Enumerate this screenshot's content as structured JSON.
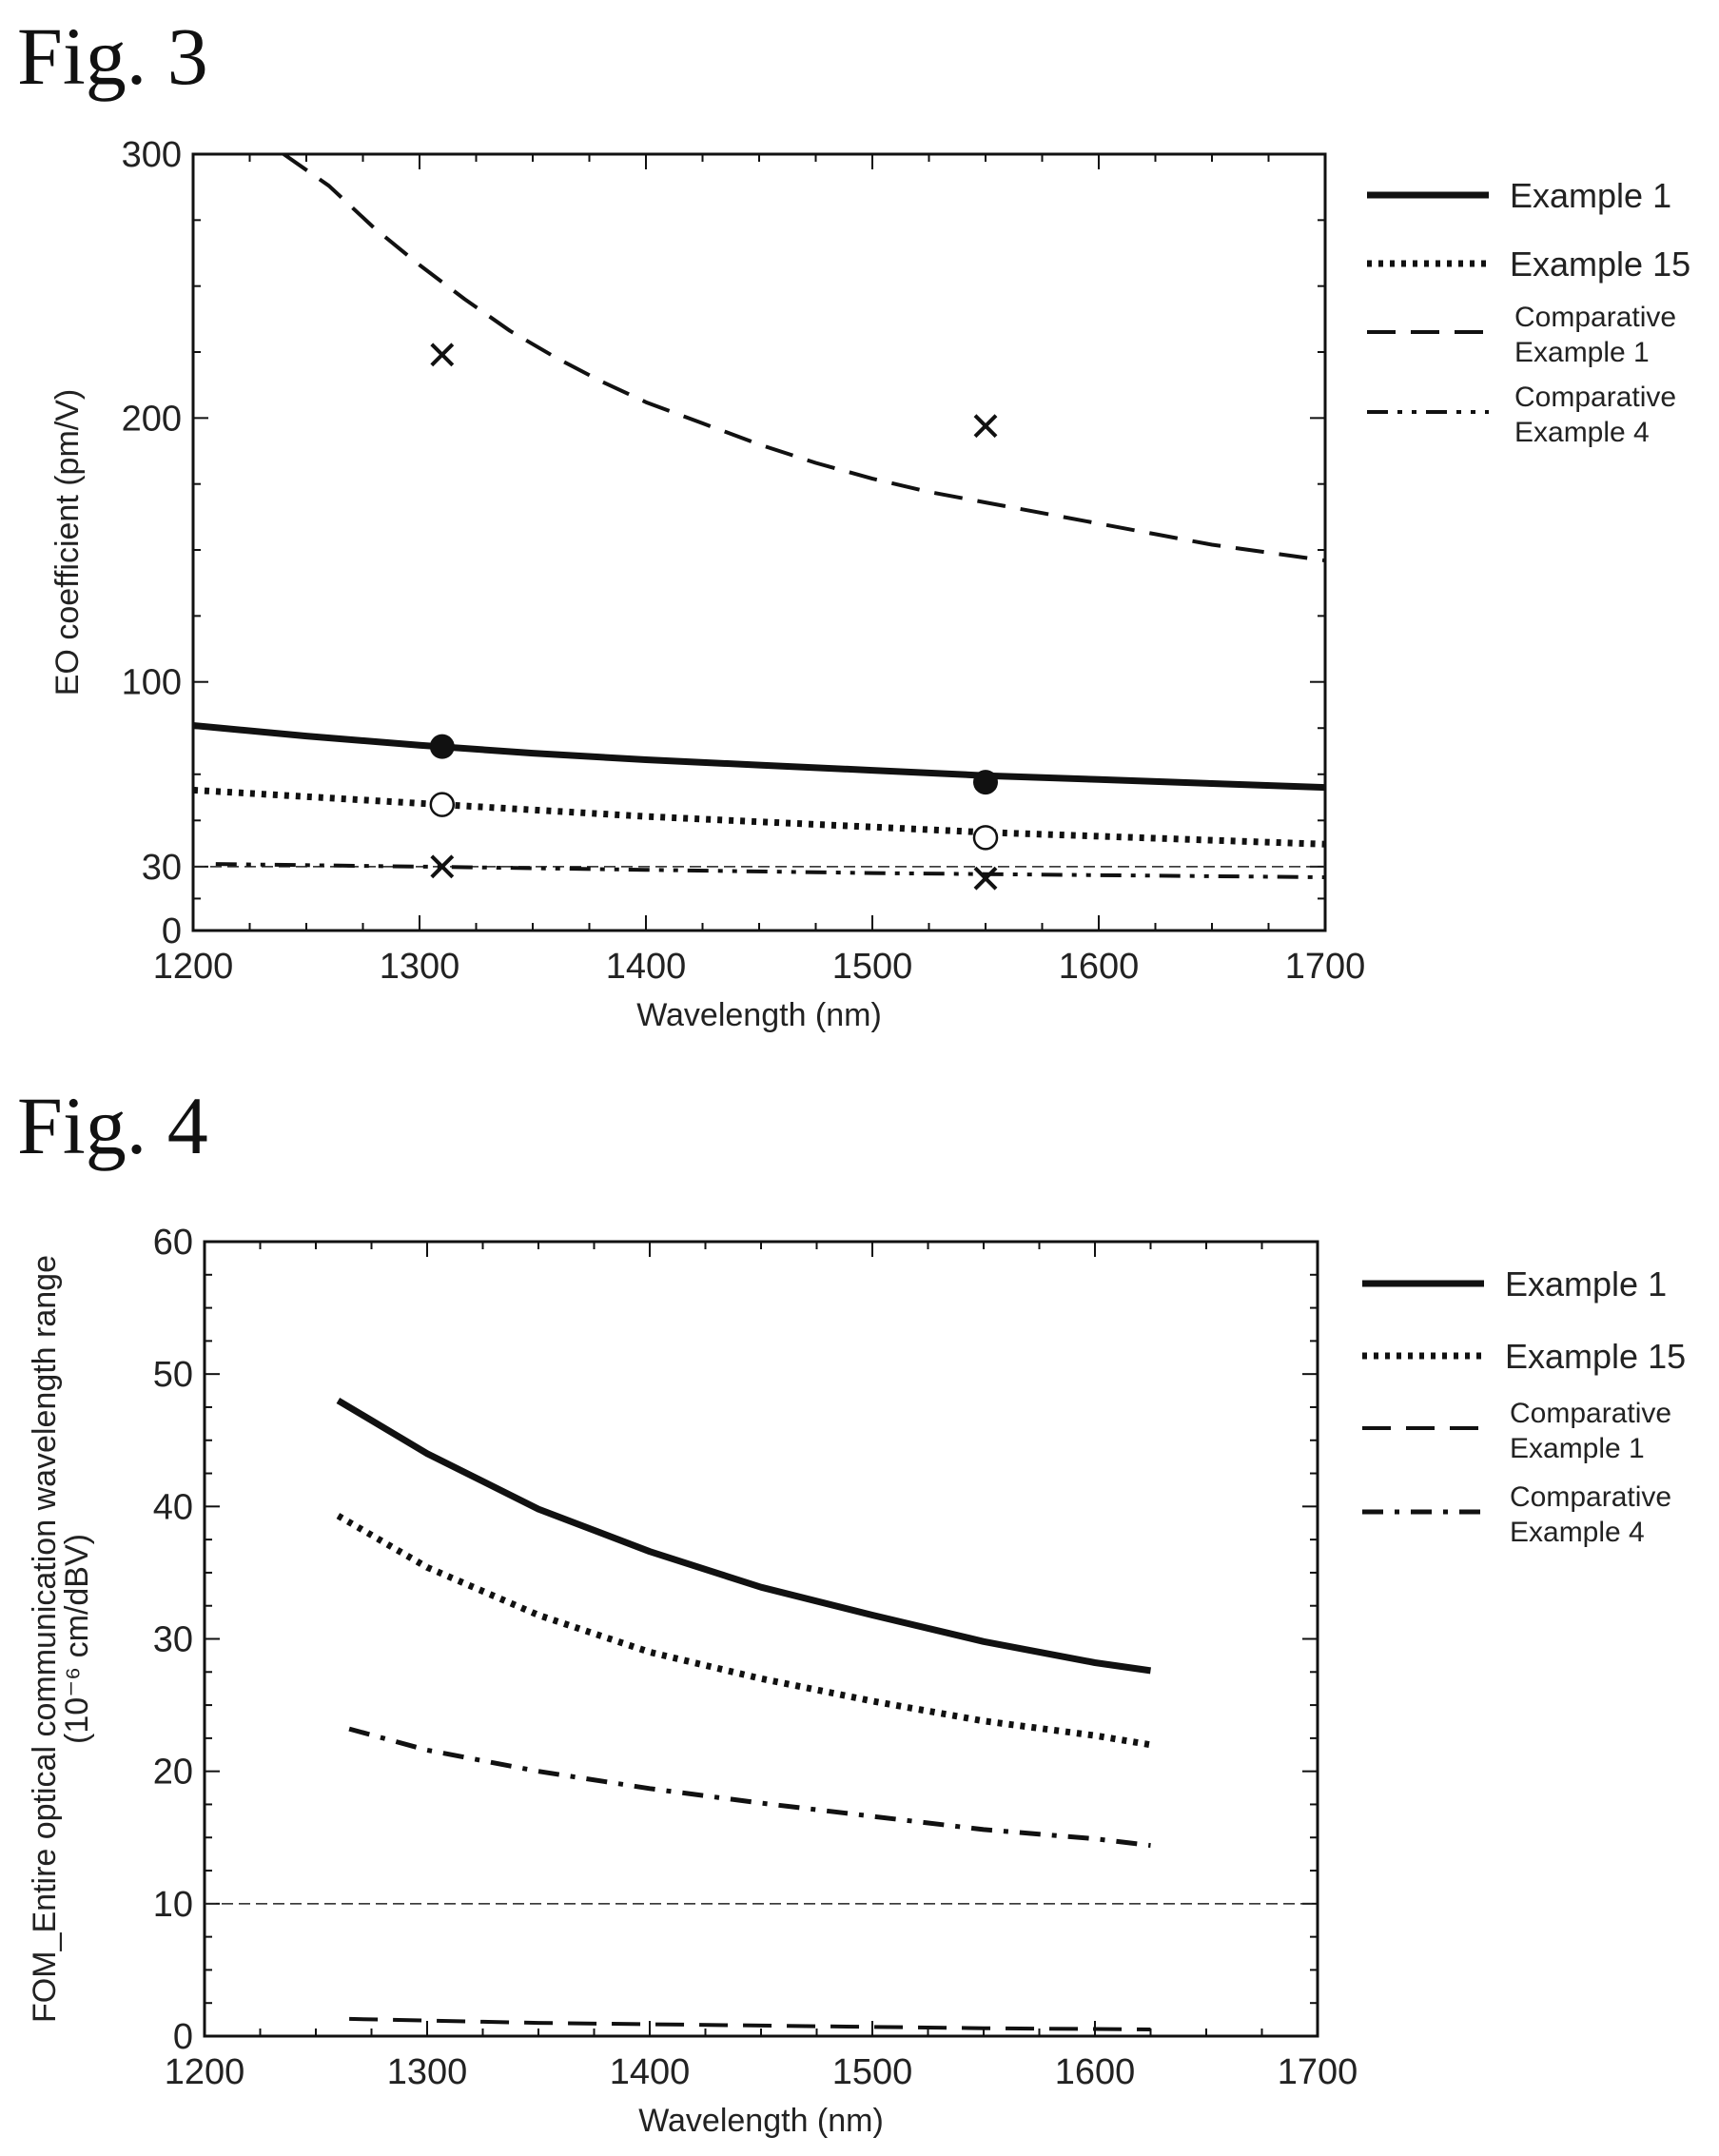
{
  "figures": [
    {
      "label": "Fig. 3"
    },
    {
      "label": "Fig. 4"
    }
  ],
  "chart_data": [
    {
      "type": "line",
      "xlabel": "Wavelength (nm)",
      "ylabel": "EO coefficient (pm/V)",
      "xlim": [
        1200,
        1700
      ],
      "ylim": [
        0,
        300
      ],
      "xticks": [
        1200,
        1300,
        1400,
        1500,
        1600,
        1700
      ],
      "yticks": [
        0,
        30,
        100,
        200,
        300
      ],
      "grid": false,
      "legend_position": "outside-right",
      "reference_lines": [
        {
          "y": 30,
          "style": "thin-dashed"
        }
      ],
      "series": [
        {
          "name": "Example 1",
          "style": "solid",
          "x": [
            1200,
            1250,
            1300,
            1350,
            1400,
            1450,
            1500,
            1550,
            1600,
            1650,
            1700
          ],
          "y": [
            83.5,
            79.5,
            76,
            73,
            70.5,
            68.5,
            66.5,
            64.5,
            63,
            61.5,
            60
          ],
          "markers": {
            "shape": "filled-circle",
            "x": [
              1310,
              1550
            ],
            "y": [
              75.5,
              62
            ]
          }
        },
        {
          "name": "Example 15",
          "style": "dotted",
          "x": [
            1200,
            1250,
            1300,
            1350,
            1400,
            1450,
            1500,
            1550,
            1600,
            1650,
            1700
          ],
          "y": [
            59,
            56.5,
            54,
            51.5,
            49,
            47,
            45,
            43,
            41.5,
            40,
            38.5
          ],
          "markers": {
            "shape": "open-circle",
            "x": [
              1310,
              1550
            ],
            "y": [
              53.5,
              41
            ]
          }
        },
        {
          "name": "Comparative\nExample 1",
          "style": "dashed",
          "x": [
            1240,
            1260,
            1280,
            1300,
            1320,
            1340,
            1360,
            1380,
            1400,
            1425,
            1450,
            1475,
            1500,
            1525,
            1550,
            1575,
            1600,
            1625,
            1650,
            1675,
            1700
          ],
          "y": [
            300,
            288,
            272,
            258,
            245,
            233,
            223,
            214,
            206,
            198,
            190,
            183,
            177,
            172,
            168,
            164,
            160,
            156,
            152,
            149,
            146
          ],
          "markers": {
            "shape": "x",
            "x": [
              1310,
              1550
            ],
            "y": [
              224,
              197
            ]
          }
        },
        {
          "name": "Comparative\nExample 4",
          "style": "dash-dot-dot",
          "x": [
            1210,
            1300,
            1400,
            1500,
            1550,
            1600,
            1700
          ],
          "y": [
            31,
            30,
            28.5,
            27,
            26.5,
            26,
            25
          ],
          "markers": {
            "shape": "x",
            "x": [
              1310,
              1550
            ],
            "y": [
              30,
              24.5
            ]
          }
        }
      ]
    },
    {
      "type": "line",
      "xlabel": "Wavelength (nm)",
      "ylabel": "FOM_Entire optical communication wavelength range",
      "ylabel_unit": "(10⁻⁶ cm/dBV)",
      "xlim": [
        1200,
        1700
      ],
      "ylim": [
        0,
        60
      ],
      "xticks": [
        1200,
        1300,
        1400,
        1500,
        1600,
        1700
      ],
      "yticks": [
        0,
        10,
        20,
        30,
        40,
        50,
        60
      ],
      "grid": false,
      "legend_position": "outside-right",
      "reference_lines": [
        {
          "y": 10,
          "style": "thin-dashed"
        }
      ],
      "series": [
        {
          "name": "Example 1",
          "style": "solid",
          "x": [
            1260,
            1300,
            1350,
            1400,
            1450,
            1500,
            1550,
            1600,
            1625
          ],
          "y": [
            48,
            44,
            39.8,
            36.6,
            33.9,
            31.8,
            29.8,
            28.2,
            27.6
          ]
        },
        {
          "name": "Example 15",
          "style": "dotted",
          "x": [
            1260,
            1300,
            1350,
            1400,
            1450,
            1500,
            1550,
            1600,
            1625
          ],
          "y": [
            39.3,
            35.4,
            31.8,
            29,
            27,
            25.3,
            23.8,
            22.7,
            22
          ]
        },
        {
          "name": "Comparative\nExample 1",
          "style": "dashed",
          "x": [
            1265,
            1350,
            1450,
            1550,
            1625
          ],
          "y": [
            1.3,
            1,
            0.8,
            0.6,
            0.5
          ]
        },
        {
          "name": "Comparative\nExample 4",
          "style": "dash-dot",
          "x": [
            1265,
            1300,
            1350,
            1400,
            1450,
            1500,
            1550,
            1600,
            1625
          ],
          "y": [
            23.2,
            21.6,
            20,
            18.7,
            17.6,
            16.6,
            15.6,
            14.9,
            14.4
          ]
        }
      ]
    }
  ]
}
